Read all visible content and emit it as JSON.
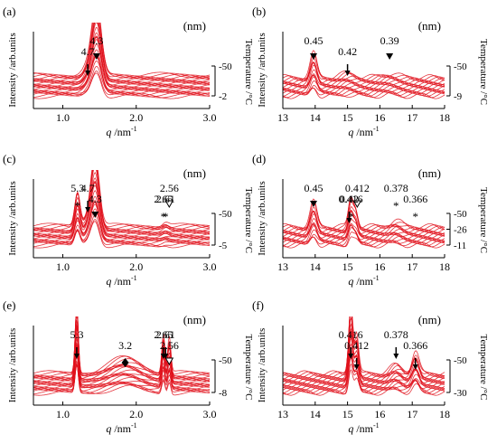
{
  "figure": {
    "common": {
      "ylabel": "Intensity /arb.units",
      "temp_label": "Temperature /°C",
      "xlabel_q": "q",
      "xlabel_unit": " /nm",
      "xlabel_exp": "-1"
    }
  },
  "chart_data": [
    {
      "id": "a",
      "type": "line",
      "panel_label": "(a)",
      "unit": "(nm)",
      "xlim": [
        0.6,
        3.0
      ],
      "xticks": [
        "1.0",
        "2.0",
        "3.0"
      ],
      "temp_ticks": [
        "-50",
        "-2"
      ],
      "series_count": 24,
      "peaks": [
        {
          "q": 1.46,
          "d": "4.3",
          "amp": 1.0,
          "w": 0.09
        },
        {
          "q": 1.34,
          "d": "4.7",
          "amp": 0.12,
          "w": 0.09
        }
      ],
      "annotations": [
        {
          "text": "4.3",
          "q": 1.46,
          "marker": "filled-down"
        },
        {
          "text": "4.7",
          "q": 1.34,
          "marker": "arrow-down"
        }
      ]
    },
    {
      "id": "b",
      "type": "line",
      "panel_label": "(b)",
      "unit": "(nm)",
      "xlim": [
        13,
        18
      ],
      "xticks": [
        "13",
        "14",
        "15",
        "16",
        "17",
        "18"
      ],
      "temp_ticks": [
        "-50",
        "-9"
      ],
      "series_count": 18,
      "peaks": [
        {
          "q": 13.95,
          "d": "0.45",
          "amp": 0.35,
          "w": 0.14
        },
        {
          "q": 15.0,
          "d": "0.42",
          "amp": 0.06,
          "w": 0.3
        },
        {
          "q": 16.3,
          "d": "0.39",
          "amp": 0.05,
          "w": 0.35
        }
      ],
      "annotations": [
        {
          "text": "0.45",
          "q": 13.95,
          "marker": "filled-down"
        },
        {
          "text": "0.42",
          "q": 15.0,
          "marker": "arrow-down"
        },
        {
          "text": "0.39",
          "q": 16.3,
          "marker": "filled-down"
        }
      ]
    },
    {
      "id": "c",
      "type": "line",
      "panel_label": "(c)",
      "unit": "(nm)",
      "xlim": [
        0.6,
        3.0
      ],
      "xticks": [
        "1.0",
        "2.0",
        "3.0"
      ],
      "temp_ticks": [
        "-50",
        "-5"
      ],
      "series_count": 22,
      "peaks": [
        {
          "q": 1.44,
          "d": "4.3",
          "amp": 1.0,
          "w": 0.08
        },
        {
          "q": 1.2,
          "d": "5.3",
          "amp": 0.5,
          "w": 0.05
        },
        {
          "q": 1.34,
          "d": "4.7",
          "amp": 0.12,
          "w": 0.08
        },
        {
          "q": 2.4,
          "d": "2.61",
          "amp": 0.05,
          "w": 0.06
        }
      ],
      "annotations": [
        {
          "text": "5.3",
          "q": 1.2,
          "marker": "asterisk"
        },
        {
          "text": "4.3",
          "q": 1.44,
          "marker": "filled-down"
        },
        {
          "text": "4.7",
          "q": 1.34,
          "marker": "arrow-down"
        },
        {
          "text": "2.65",
          "q": 2.37,
          "marker": "asterisk"
        },
        {
          "text": "2.56",
          "q": 2.45,
          "marker": "open-down"
        },
        {
          "text": "2.61",
          "q": 2.4,
          "marker": "asterisk"
        }
      ]
    },
    {
      "id": "d",
      "type": "line",
      "panel_label": "(d)",
      "unit": "(nm)",
      "xlim": [
        13,
        18
      ],
      "xticks": [
        "13",
        "14",
        "15",
        "16",
        "17",
        "18"
      ],
      "temp_ticks": [
        "-50",
        "-26",
        "-11"
      ],
      "series_count": 18,
      "peaks": [
        {
          "q": 13.95,
          "d": "0.45",
          "amp": 0.35,
          "w": 0.14
        },
        {
          "q": 15.1,
          "d": "0.416",
          "amp": 0.4,
          "w": 0.1
        },
        {
          "q": 15.25,
          "d": "0.412",
          "amp": 0.25,
          "w": 0.1
        },
        {
          "q": 16.5,
          "d": "0.378",
          "amp": 0.08,
          "w": 0.25
        }
      ],
      "annotations": [
        {
          "text": "0.45",
          "q": 13.95,
          "marker": "filled-down"
        },
        {
          "text": "0.416",
          "q": 15.1,
          "marker": "asterisk"
        },
        {
          "text": "0.412",
          "q": 15.3,
          "marker": "open-down"
        },
        {
          "text": "0.42",
          "q": 15.05,
          "marker": "arrow-down"
        },
        {
          "text": "0.378",
          "q": 16.5,
          "marker": "asterisk"
        },
        {
          "text": "0.366",
          "q": 17.1,
          "marker": "asterisk"
        }
      ]
    },
    {
      "id": "e",
      "type": "line",
      "panel_label": "(e)",
      "unit": "(nm)",
      "xlim": [
        0.6,
        3.0
      ],
      "xticks": [
        "1.0",
        "2.0",
        "3.0"
      ],
      "temp_ticks": [
        "-50",
        "-8"
      ],
      "series_count": 22,
      "peaks": [
        {
          "q": 1.19,
          "d": "5.3",
          "amp": 1.0,
          "w": 0.03
        },
        {
          "q": 1.85,
          "d": "3.2",
          "amp": 0.22,
          "w": 0.3
        },
        {
          "q": 2.37,
          "d": "2.65",
          "amp": 0.55,
          "w": 0.03
        },
        {
          "q": 2.45,
          "d": "2.56",
          "amp": 0.5,
          "w": 0.03
        }
      ],
      "annotations": [
        {
          "text": "5.3",
          "q": 1.19,
          "marker": "arrow-down"
        },
        {
          "text": "3.2",
          "q": 1.85,
          "marker": "diamond"
        },
        {
          "text": "2.65",
          "q": 2.37,
          "marker": "arrow-down"
        },
        {
          "text": "2.56",
          "q": 2.45,
          "marker": "open-down"
        },
        {
          "text": "2.61",
          "q": 2.4,
          "marker": "arrow-down"
        }
      ]
    },
    {
      "id": "f",
      "type": "line",
      "panel_label": "(f)",
      "unit": "(nm)",
      "xlim": [
        13,
        18
      ],
      "xticks": [
        "13",
        "14",
        "15",
        "16",
        "17",
        "18"
      ],
      "temp_ticks": [
        "-50",
        "-30"
      ],
      "series_count": 20,
      "peaks": [
        {
          "q": 15.1,
          "d": "0.416",
          "amp": 1.0,
          "w": 0.09
        },
        {
          "q": 15.28,
          "d": "0.412",
          "amp": 0.55,
          "w": 0.09
        },
        {
          "q": 16.5,
          "d": "0.378",
          "amp": 0.12,
          "w": 0.25
        },
        {
          "q": 17.1,
          "d": "0.366",
          "amp": 0.3,
          "w": 0.15
        }
      ],
      "annotations": [
        {
          "text": "0.416",
          "q": 15.1,
          "marker": "arrow-down"
        },
        {
          "text": "0.412",
          "q": 15.28,
          "marker": "arrow-down"
        },
        {
          "text": "0.378",
          "q": 16.5,
          "marker": "arrow-down"
        },
        {
          "text": "0.366",
          "q": 17.1,
          "marker": "arrow-down"
        }
      ]
    }
  ]
}
